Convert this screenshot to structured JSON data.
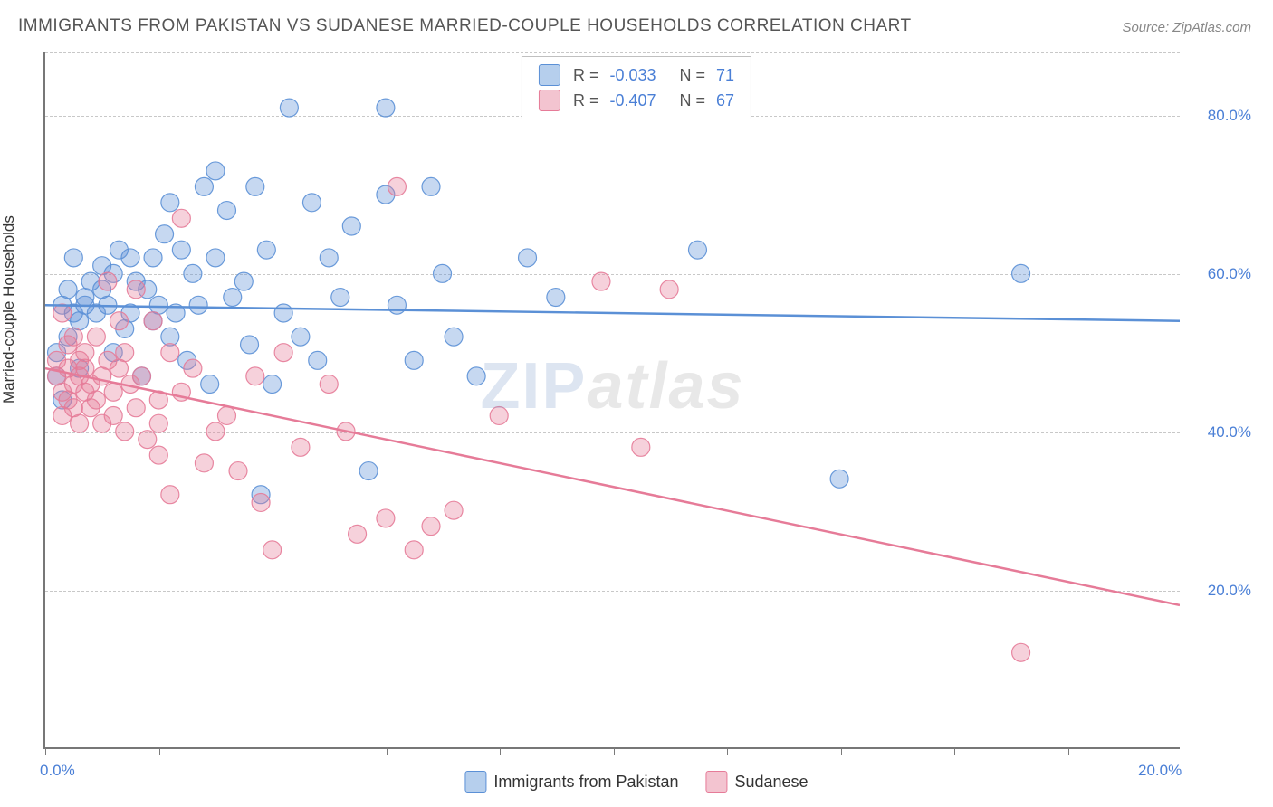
{
  "title": "IMMIGRANTS FROM PAKISTAN VS SUDANESE MARRIED-COUPLE HOUSEHOLDS CORRELATION CHART",
  "source": "Source: ZipAtlas.com",
  "watermark": {
    "part1": "ZIP",
    "part2": "atlas"
  },
  "ylabel": "Married-couple Households",
  "chart": {
    "type": "scatter_with_regression",
    "background_color": "#ffffff",
    "grid_color": "#c8c8c8",
    "axis_color": "#777777",
    "xlim": [
      0,
      20
    ],
    "ylim": [
      0,
      88
    ],
    "x_tick_values": [
      0,
      2,
      4,
      6,
      8,
      10,
      12,
      14,
      16,
      18,
      20
    ],
    "x_tick_labels": {
      "0": "0.0%",
      "20": "20.0%"
    },
    "y_gridlines": [
      20,
      40,
      60,
      80
    ],
    "y_tick_labels": {
      "20": "20.0%",
      "40": "40.0%",
      "60": "60.0%",
      "80": "80.0%"
    },
    "tick_label_color": "#4a7fd6",
    "tick_label_fontsize": 17,
    "marker_radius": 10,
    "marker_fill_opacity": 0.35,
    "marker_stroke_opacity": 0.9,
    "line_width": 2.5,
    "series": [
      {
        "name": "Immigrants from Pakistan",
        "color": "#5b90d6",
        "legend_fill": "#b6cfed",
        "legend_stroke": "#5b90d6",
        "R": "-0.033",
        "N": "71",
        "regression": {
          "y_at_x0": 56,
          "y_at_x20": 54
        },
        "points": [
          [
            0.2,
            47
          ],
          [
            0.2,
            50
          ],
          [
            0.3,
            44
          ],
          [
            0.3,
            56
          ],
          [
            0.4,
            58
          ],
          [
            0.4,
            52
          ],
          [
            0.5,
            55
          ],
          [
            0.5,
            62
          ],
          [
            0.6,
            48
          ],
          [
            0.6,
            54
          ],
          [
            0.7,
            57
          ],
          [
            0.7,
            56
          ],
          [
            0.8,
            59
          ],
          [
            0.9,
            55
          ],
          [
            1.0,
            58
          ],
          [
            1.0,
            61
          ],
          [
            1.1,
            56
          ],
          [
            1.2,
            50
          ],
          [
            1.2,
            60
          ],
          [
            1.3,
            63
          ],
          [
            1.4,
            53
          ],
          [
            1.5,
            62
          ],
          [
            1.5,
            55
          ],
          [
            1.6,
            59
          ],
          [
            1.7,
            47
          ],
          [
            1.8,
            58
          ],
          [
            1.9,
            62
          ],
          [
            1.9,
            54
          ],
          [
            2.0,
            56
          ],
          [
            2.1,
            65
          ],
          [
            2.2,
            52
          ],
          [
            2.2,
            69
          ],
          [
            2.3,
            55
          ],
          [
            2.4,
            63
          ],
          [
            2.5,
            49
          ],
          [
            2.6,
            60
          ],
          [
            2.7,
            56
          ],
          [
            2.8,
            71
          ],
          [
            2.9,
            46
          ],
          [
            3.0,
            62
          ],
          [
            3.0,
            73
          ],
          [
            3.2,
            68
          ],
          [
            3.3,
            57
          ],
          [
            3.5,
            59
          ],
          [
            3.6,
            51
          ],
          [
            3.7,
            71
          ],
          [
            3.8,
            32
          ],
          [
            3.9,
            63
          ],
          [
            4.0,
            46
          ],
          [
            4.2,
            55
          ],
          [
            4.3,
            81
          ],
          [
            4.5,
            52
          ],
          [
            4.7,
            69
          ],
          [
            4.8,
            49
          ],
          [
            5.0,
            62
          ],
          [
            5.2,
            57
          ],
          [
            5.4,
            66
          ],
          [
            5.7,
            35
          ],
          [
            6.0,
            81
          ],
          [
            6.0,
            70
          ],
          [
            6.2,
            56
          ],
          [
            6.5,
            49
          ],
          [
            6.8,
            71
          ],
          [
            7.0,
            60
          ],
          [
            7.2,
            52
          ],
          [
            7.6,
            47
          ],
          [
            8.5,
            62
          ],
          [
            9.0,
            57
          ],
          [
            11.5,
            63
          ],
          [
            14.0,
            34
          ],
          [
            17.2,
            60
          ]
        ]
      },
      {
        "name": "Sudanese",
        "color": "#e67b98",
        "legend_fill": "#f3c4d0",
        "legend_stroke": "#e67b98",
        "R": "-0.407",
        "N": "67",
        "regression": {
          "y_at_x0": 48,
          "y_at_x20": 18
        },
        "points": [
          [
            0.2,
            49
          ],
          [
            0.2,
            47
          ],
          [
            0.3,
            55
          ],
          [
            0.3,
            45
          ],
          [
            0.3,
            42
          ],
          [
            0.4,
            48
          ],
          [
            0.4,
            51
          ],
          [
            0.4,
            44
          ],
          [
            0.5,
            46
          ],
          [
            0.5,
            52
          ],
          [
            0.5,
            43
          ],
          [
            0.6,
            47
          ],
          [
            0.6,
            41
          ],
          [
            0.6,
            49
          ],
          [
            0.7,
            45
          ],
          [
            0.7,
            50
          ],
          [
            0.7,
            48
          ],
          [
            0.8,
            43
          ],
          [
            0.8,
            46
          ],
          [
            0.9,
            44
          ],
          [
            0.9,
            52
          ],
          [
            1.0,
            47
          ],
          [
            1.0,
            41
          ],
          [
            1.1,
            49
          ],
          [
            1.1,
            59
          ],
          [
            1.2,
            45
          ],
          [
            1.2,
            42
          ],
          [
            1.3,
            48
          ],
          [
            1.3,
            54
          ],
          [
            1.4,
            50
          ],
          [
            1.4,
            40
          ],
          [
            1.5,
            46
          ],
          [
            1.6,
            58
          ],
          [
            1.6,
            43
          ],
          [
            1.7,
            47
          ],
          [
            1.8,
            39
          ],
          [
            1.9,
            54
          ],
          [
            2.0,
            44
          ],
          [
            2.0,
            41
          ],
          [
            2.0,
            37
          ],
          [
            2.2,
            50
          ],
          [
            2.2,
            32
          ],
          [
            2.4,
            45
          ],
          [
            2.4,
            67
          ],
          [
            2.6,
            48
          ],
          [
            2.8,
            36
          ],
          [
            3.0,
            40
          ],
          [
            3.2,
            42
          ],
          [
            3.4,
            35
          ],
          [
            3.7,
            47
          ],
          [
            3.8,
            31
          ],
          [
            4.0,
            25
          ],
          [
            4.2,
            50
          ],
          [
            4.5,
            38
          ],
          [
            5.0,
            46
          ],
          [
            5.3,
            40
          ],
          [
            5.5,
            27
          ],
          [
            6.0,
            29
          ],
          [
            6.2,
            71
          ],
          [
            6.5,
            25
          ],
          [
            6.8,
            28
          ],
          [
            7.2,
            30
          ],
          [
            8.0,
            42
          ],
          [
            9.8,
            59
          ],
          [
            10.5,
            38
          ],
          [
            11.0,
            58
          ],
          [
            17.2,
            12
          ]
        ]
      }
    ]
  },
  "legend_bottom": [
    {
      "label": "Immigrants from Pakistan",
      "fill": "#b6cfed",
      "stroke": "#5b90d6"
    },
    {
      "label": "Sudanese",
      "fill": "#f3c4d0",
      "stroke": "#e67b98"
    }
  ]
}
